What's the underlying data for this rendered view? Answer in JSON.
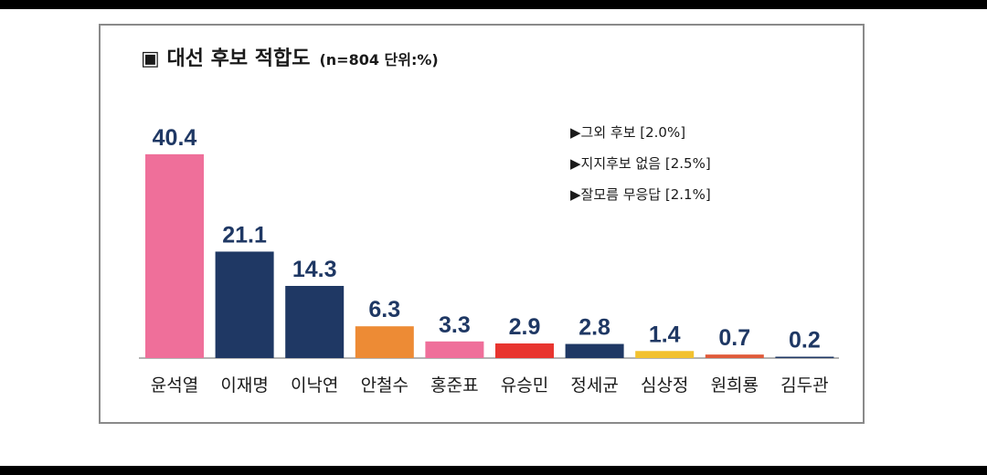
{
  "chart_data": {
    "type": "bar",
    "title": "▣ 대선 후보 적합도",
    "subtitle": "(n=804 단위:%)",
    "categories": [
      "윤석열",
      "이재명",
      "이낙연",
      "안철수",
      "홍준표",
      "유승민",
      "정세균",
      "심상정",
      "원희룡",
      "김두관"
    ],
    "values": [
      40.4,
      21.1,
      14.3,
      6.3,
      3.3,
      2.9,
      2.8,
      1.4,
      0.7,
      0.2
    ],
    "value_labels": [
      "40.4",
      "21.1",
      "14.3",
      "6.3",
      "3.3",
      "2.9",
      "2.8",
      "1.4",
      "0.7",
      "0.2"
    ],
    "bar_colors": [
      "#ef6f9a",
      "#1f3864",
      "#1f3864",
      "#ed8b35",
      "#ef6f9a",
      "#e8352f",
      "#1f3864",
      "#f2c12e",
      "#e05a3a",
      "#1f3864"
    ],
    "label_color": "#1f3864",
    "ylim": [
      0,
      42
    ],
    "grid": false,
    "xlabel": "",
    "ylabel": "",
    "notes": [
      "▶그외 후보  [2.0%]",
      "▶지지후보 없음  [2.5%]",
      "▶잘모름 무응답  [2.1%]"
    ]
  }
}
